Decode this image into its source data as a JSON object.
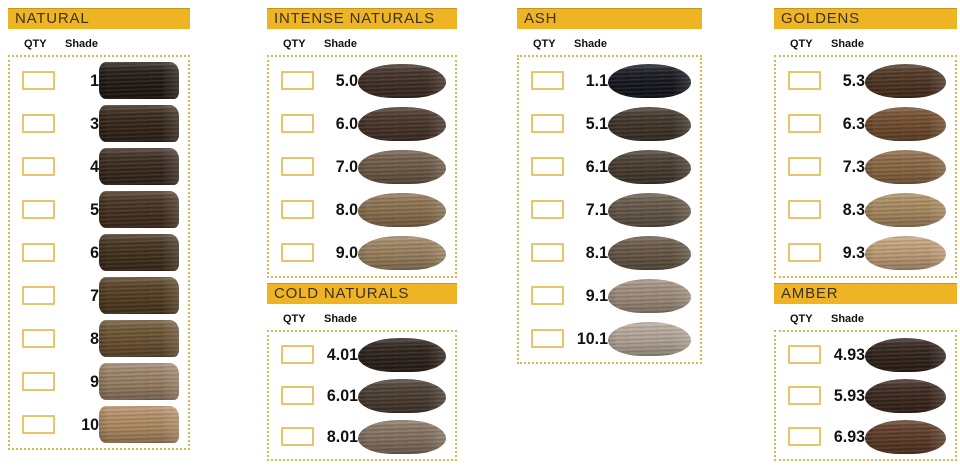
{
  "palette": {
    "page_bg": "#ffffff",
    "header_bg": "#eeb424",
    "header_text": "#3a3222",
    "box_dotted": "#d8b94e",
    "checkbox_border": "#e9c56a",
    "label_text": "#111111"
  },
  "table_headers": {
    "qty": "QTY",
    "shade": "Shade"
  },
  "columns": [
    {
      "sections": [
        {
          "title": "NATURAL",
          "shape": "rect",
          "rows": [
            {
              "shade": "1",
              "color": "#221a13"
            },
            {
              "shade": "3",
              "color": "#342619"
            },
            {
              "shade": "4",
              "color": "#39291d"
            },
            {
              "shade": "5",
              "color": "#45311f"
            },
            {
              "shade": "6",
              "color": "#42301c"
            },
            {
              "shade": "7",
              "color": "#543d20"
            },
            {
              "shade": "8",
              "color": "#6b5231"
            },
            {
              "shade": "9",
              "color": "#9a8166"
            },
            {
              "shade": "10",
              "color": "#b28d63"
            }
          ]
        }
      ]
    },
    {
      "sections": [
        {
          "title": "INTENSE NATURALS",
          "shape": "oval",
          "rows": [
            {
              "shade": "5.0",
              "color": "#412f26"
            },
            {
              "shade": "6.0",
              "color": "#48342a"
            },
            {
              "shade": "7.0",
              "color": "#6f5b45"
            },
            {
              "shade": "8.0",
              "color": "#8d7150"
            },
            {
              "shade": "9.0",
              "color": "#9b825e"
            }
          ]
        },
        {
          "title": "COLD NATURALS",
          "shape": "oval",
          "rows": [
            {
              "shade": "4.01",
              "color": "#2d221b"
            },
            {
              "shade": "6.01",
              "color": "#4a3c31"
            },
            {
              "shade": "8.01",
              "color": "#857260"
            }
          ]
        }
      ]
    },
    {
      "sections": [
        {
          "title": "ASH",
          "shape": "oval",
          "rows": [
            {
              "shade": "1.1",
              "color": "#16161f"
            },
            {
              "shade": "5.1",
              "color": "#413529"
            },
            {
              "shade": "6.1",
              "color": "#483c30"
            },
            {
              "shade": "7.1",
              "color": "#655848"
            },
            {
              "shade": "8.1",
              "color": "#675746"
            },
            {
              "shade": "9.1",
              "color": "#a18e7d"
            },
            {
              "shade": "10.1",
              "color": "#b5a798"
            }
          ]
        }
      ]
    },
    {
      "sections": [
        {
          "title": "GOLDENS",
          "shape": "oval",
          "rows": [
            {
              "shade": "5.3",
              "color": "#4e3422"
            },
            {
              "shade": "6.3",
              "color": "#724c2d"
            },
            {
              "shade": "7.3",
              "color": "#8c6843"
            },
            {
              "shade": "8.3",
              "color": "#aa8b60"
            },
            {
              "shade": "9.3",
              "color": "#c2a078"
            }
          ]
        },
        {
          "title": "AMBER",
          "shape": "oval",
          "rows": [
            {
              "shade": "4.93",
              "color": "#32221b"
            },
            {
              "shade": "5.93",
              "color": "#3c281e"
            },
            {
              "shade": "6.93",
              "color": "#5e3b25"
            }
          ]
        }
      ]
    }
  ]
}
